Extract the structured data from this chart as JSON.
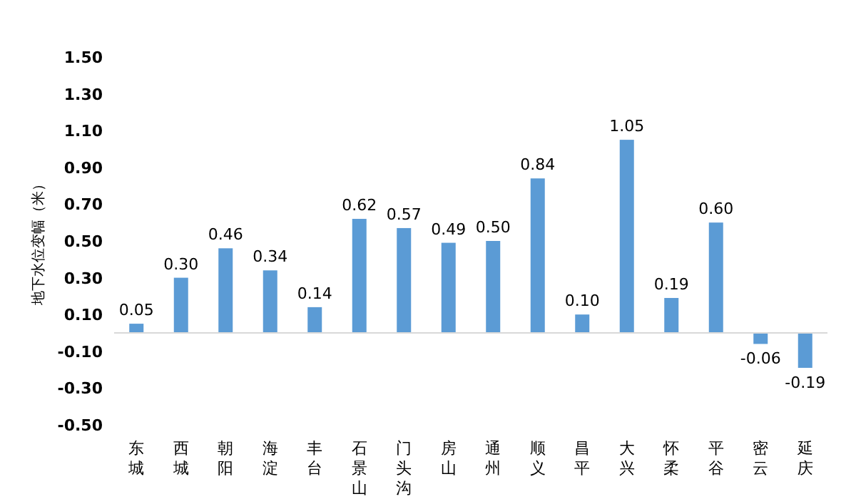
{
  "chart_data": {
    "type": "bar",
    "ylabel": "地下水位变幅（米）",
    "categories": [
      "东城",
      "西城",
      "朝阳",
      "海淀",
      "丰台",
      "石景山",
      "门头沟",
      "房山",
      "通州",
      "顺义",
      "昌平",
      "大兴",
      "怀柔",
      "平谷",
      "密云",
      "延庆"
    ],
    "values": [
      0.05,
      0.3,
      0.46,
      0.34,
      0.14,
      0.62,
      0.57,
      0.49,
      0.5,
      0.84,
      0.1,
      1.05,
      0.19,
      0.6,
      -0.06,
      -0.19
    ],
    "value_labels": [
      "0.05",
      "0.30",
      "0.46",
      "0.34",
      "0.14",
      "0.62",
      "0.57",
      "0.49",
      "0.50",
      "0.84",
      "0.10",
      "1.05",
      "0.19",
      "0.60",
      "-0.06",
      "-0.19"
    ],
    "color": "#5b9bd5",
    "ylim": [
      -0.5,
      1.5
    ],
    "yticks": [
      {
        "value": -0.5,
        "label": "-0.50"
      },
      {
        "value": -0.3,
        "label": "-0.30"
      },
      {
        "value": -0.1,
        "label": "-0.10"
      },
      {
        "value": 0.1,
        "label": "0.10"
      },
      {
        "value": 0.3,
        "label": "0.30"
      },
      {
        "value": 0.5,
        "label": "0.50"
      },
      {
        "value": 0.7,
        "label": "0.70"
      },
      {
        "value": 0.9,
        "label": "0.90"
      },
      {
        "value": 1.1,
        "label": "1.10"
      },
      {
        "value": 1.3,
        "label": "1.30"
      },
      {
        "value": 1.5,
        "label": "1.50"
      }
    ],
    "grid": false
  }
}
